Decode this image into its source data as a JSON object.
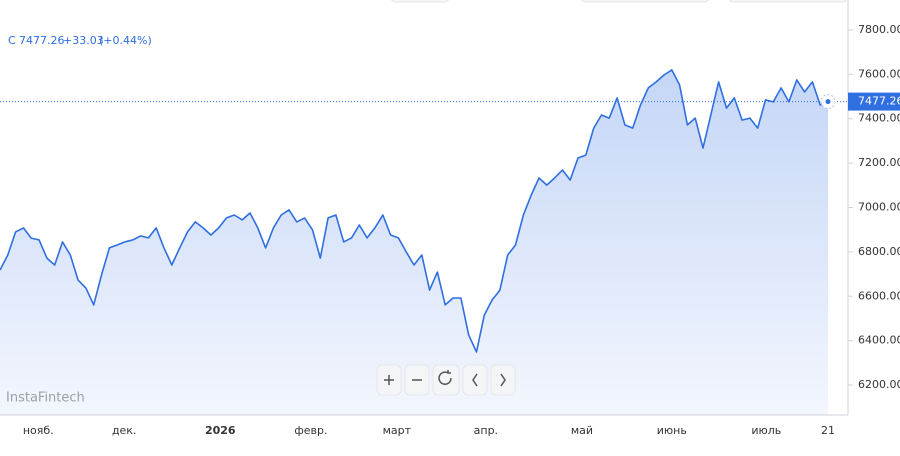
{
  "header": {
    "symbol": "C",
    "change": "+33.03",
    "change_pct": "(+0.44%)"
  },
  "watermark": "InstaFintech",
  "chart_data": {
    "type": "area",
    "color": "#2f6fe0",
    "values": [
      6718,
      6786,
      6890,
      6908,
      6862,
      6854,
      6772,
      6741,
      6845,
      6786,
      6673,
      6637,
      6561,
      6696,
      6818,
      6831,
      6845,
      6854,
      6872,
      6863,
      6908,
      6818,
      6741,
      6818,
      6890,
      6935,
      6908,
      6876,
      6908,
      6953,
      6966,
      6944,
      6975,
      6908,
      6818,
      6908,
      6966,
      6989,
      6935,
      6953,
      6899,
      6772,
      6953,
      6966,
      6845,
      6863,
      6921,
      6863,
      6908,
      6966,
      6876,
      6863,
      6800,
      6741,
      6786,
      6628,
      6709,
      6561,
      6592,
      6592,
      6425,
      6349,
      6515,
      6583,
      6628,
      6786,
      6831,
      6966,
      7056,
      7133,
      7101,
      7133,
      7169,
      7124,
      7223,
      7236,
      7358,
      7417,
      7403,
      7494,
      7372,
      7358,
      7462,
      7539,
      7566,
      7597,
      7620,
      7552,
      7372,
      7403,
      7268,
      7417,
      7566,
      7448,
      7494,
      7394,
      7403,
      7358,
      7485,
      7476,
      7539,
      7476,
      7575,
      7521,
      7566,
      7462,
      7477.26
    ],
    "xlim": [
      0,
      106
    ],
    "xticks": [
      {
        "value": 4.9,
        "label": "нояб."
      },
      {
        "value": 15.9,
        "label": "дек."
      },
      {
        "value": 28.2,
        "label": "2026"
      },
      {
        "value": 39.8,
        "label": "февр."
      },
      {
        "value": 50.8,
        "label": "март"
      },
      {
        "value": 62.2,
        "label": "апр."
      },
      {
        "value": 74.5,
        "label": "май"
      },
      {
        "value": 86,
        "label": "июнь"
      },
      {
        "value": 98.1,
        "label": "июль"
      },
      {
        "value": 106,
        "label": "21"
      }
    ],
    "ylim": [
      6065,
      7935
    ],
    "yticks": [
      {
        "value": 6200,
        "label": "6200.00"
      },
      {
        "value": 6400,
        "label": "6400.00"
      },
      {
        "value": 6600,
        "label": "6600.00"
      },
      {
        "value": 6800,
        "label": "6800.00"
      },
      {
        "value": 7000,
        "label": "7000.00"
      },
      {
        "value": 7200,
        "label": "7200.00"
      },
      {
        "value": 7400,
        "label": "7400.00"
      },
      {
        "value": 7600,
        "label": "7600.00"
      },
      {
        "value": 7800,
        "label": "7800.00"
      }
    ],
    "grid": false
  }
}
